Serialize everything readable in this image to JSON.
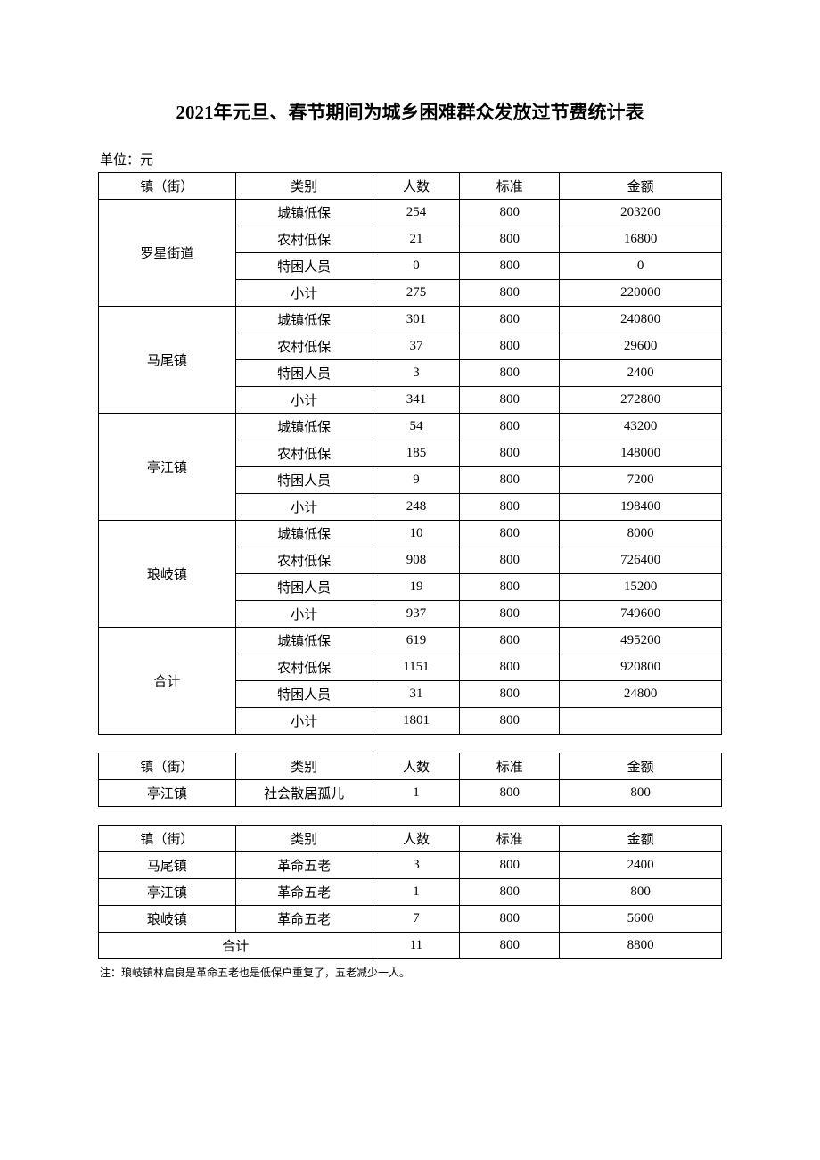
{
  "title": "2021年元旦、春节期间为城乡困难群众发放过节费统计表",
  "unit_label": "单位：元",
  "headers": {
    "town": "镇（街）",
    "category": "类别",
    "people": "人数",
    "standard": "标准",
    "amount": "金额"
  },
  "categories": {
    "urban_dibao": "城镇低保",
    "rural_dibao": "农村低保",
    "special": "特困人员",
    "subtotal": "小计",
    "orphan": "社会散居孤儿",
    "wulao": "革命五老"
  },
  "towns": {
    "luoxing": "罗星街道",
    "mawei": "马尾镇",
    "tingjiang": "亭江镇",
    "langqi": "琅岐镇",
    "total": "合计"
  },
  "table1": {
    "luoxing": {
      "urban": {
        "people": "254",
        "standard": "800",
        "amount": "203200"
      },
      "rural": {
        "people": "21",
        "standard": "800",
        "amount": "16800"
      },
      "special": {
        "people": "0",
        "standard": "800",
        "amount": "0"
      },
      "subtotal": {
        "people": "275",
        "standard": "800",
        "amount": "220000"
      }
    },
    "mawei": {
      "urban": {
        "people": "301",
        "standard": "800",
        "amount": "240800"
      },
      "rural": {
        "people": "37",
        "standard": "800",
        "amount": "29600"
      },
      "special": {
        "people": "3",
        "standard": "800",
        "amount": "2400"
      },
      "subtotal": {
        "people": "341",
        "standard": "800",
        "amount": "272800"
      }
    },
    "tingjiang": {
      "urban": {
        "people": "54",
        "standard": "800",
        "amount": "43200"
      },
      "rural": {
        "people": "185",
        "standard": "800",
        "amount": "148000"
      },
      "special": {
        "people": "9",
        "standard": "800",
        "amount": "7200"
      },
      "subtotal": {
        "people": "248",
        "standard": "800",
        "amount": "198400"
      }
    },
    "langqi": {
      "urban": {
        "people": "10",
        "standard": "800",
        "amount": "8000"
      },
      "rural": {
        "people": "908",
        "standard": "800",
        "amount": "726400"
      },
      "special": {
        "people": "19",
        "standard": "800",
        "amount": "15200"
      },
      "subtotal": {
        "people": "937",
        "standard": "800",
        "amount": "749600"
      }
    },
    "total": {
      "urban": {
        "people": "619",
        "standard": "800",
        "amount": "495200"
      },
      "rural": {
        "people": "1151",
        "standard": "800",
        "amount": "920800"
      },
      "special": {
        "people": "31",
        "standard": "800",
        "amount": "24800"
      },
      "subtotal": {
        "people": "1801",
        "standard": "800",
        "amount": ""
      }
    }
  },
  "table2": {
    "tingjiang": {
      "people": "1",
      "standard": "800",
      "amount": "800"
    }
  },
  "table3": {
    "mawei": {
      "people": "3",
      "standard": "800",
      "amount": "2400"
    },
    "tingjiang": {
      "people": "1",
      "standard": "800",
      "amount": "800"
    },
    "langqi": {
      "people": "7",
      "standard": "800",
      "amount": "5600"
    },
    "total": {
      "people": "11",
      "standard": "800",
      "amount": "8800"
    }
  },
  "footnote": "注：琅岐镇林启良是革命五老也是低保户重复了，五老减少一人。"
}
